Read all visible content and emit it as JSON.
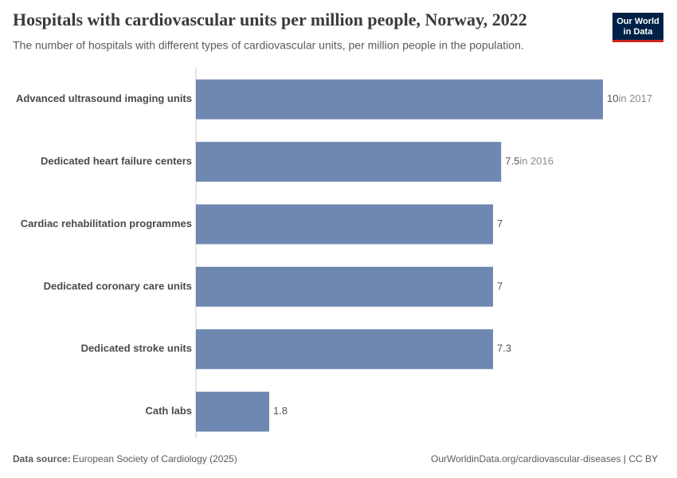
{
  "chart_data": {
    "type": "bar",
    "orientation": "horizontal",
    "title": "Hospitals with cardiovascular units per million people, Norway, 2022",
    "subtitle": "The number of hospitals with different types of cardiovascular units, per million people in the population.",
    "categories": [
      "Advanced ultrasound imaging units",
      "Dedicated heart failure centers",
      "Cardiac rehabilitation programmes",
      "Dedicated coronary care units",
      "Dedicated stroke units",
      "Cath labs"
    ],
    "values": [
      10,
      7.5,
      7.3,
      7.3,
      7.3,
      1.8
    ],
    "value_labels": [
      "10",
      "7.5",
      "7",
      "7",
      "7.3",
      "1.8"
    ],
    "value_notes": [
      "in 2017",
      "in 2016",
      null,
      null,
      null,
      null
    ],
    "color": "#6f88b1",
    "xlim": [
      0,
      10
    ],
    "source_label": "Data source:",
    "source": "European Society of Cardiology (2025)",
    "url": "OurWorldinData.org/cardiovascular-diseases | CC BY",
    "logo": [
      "Our World",
      "in Data"
    ]
  }
}
